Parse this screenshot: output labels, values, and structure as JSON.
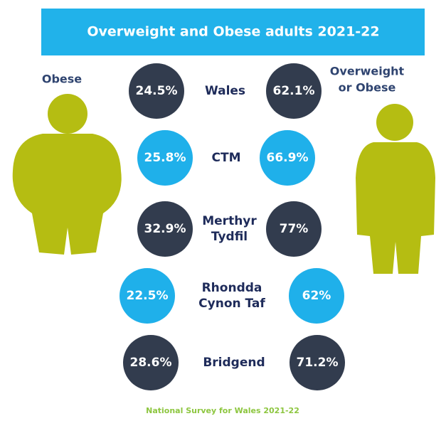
{
  "title": "Overweight and Obese adults 2021-22",
  "left_label": "Obese",
  "right_label": [
    "Overweight",
    "or Obese"
  ],
  "rows": [
    {
      "area": [
        "Wales"
      ],
      "obese": "24.5%",
      "overweight_or_obese": "62.1%",
      "color": "#323c4e"
    },
    {
      "area": [
        "CTM"
      ],
      "obese": "25.8%",
      "overweight_or_obese": "66.9%",
      "color": "#1fb0ea"
    },
    {
      "area": [
        "Merthyr",
        "Tydfil"
      ],
      "obese": "32.9%",
      "overweight_or_obese": "77%",
      "color": "#323c4e"
    },
    {
      "area": [
        "Rhondda",
        "Cynon Taf"
      ],
      "obese": "22.5%",
      "overweight_or_obese": "62%",
      "color": "#1fb0ea"
    },
    {
      "area": [
        "Bridgend"
      ],
      "obese": "28.6%",
      "overweight_or_obese": "71.2%",
      "color": "#323c4e"
    }
  ],
  "source": "National Survey for Wales 2021-22"
}
